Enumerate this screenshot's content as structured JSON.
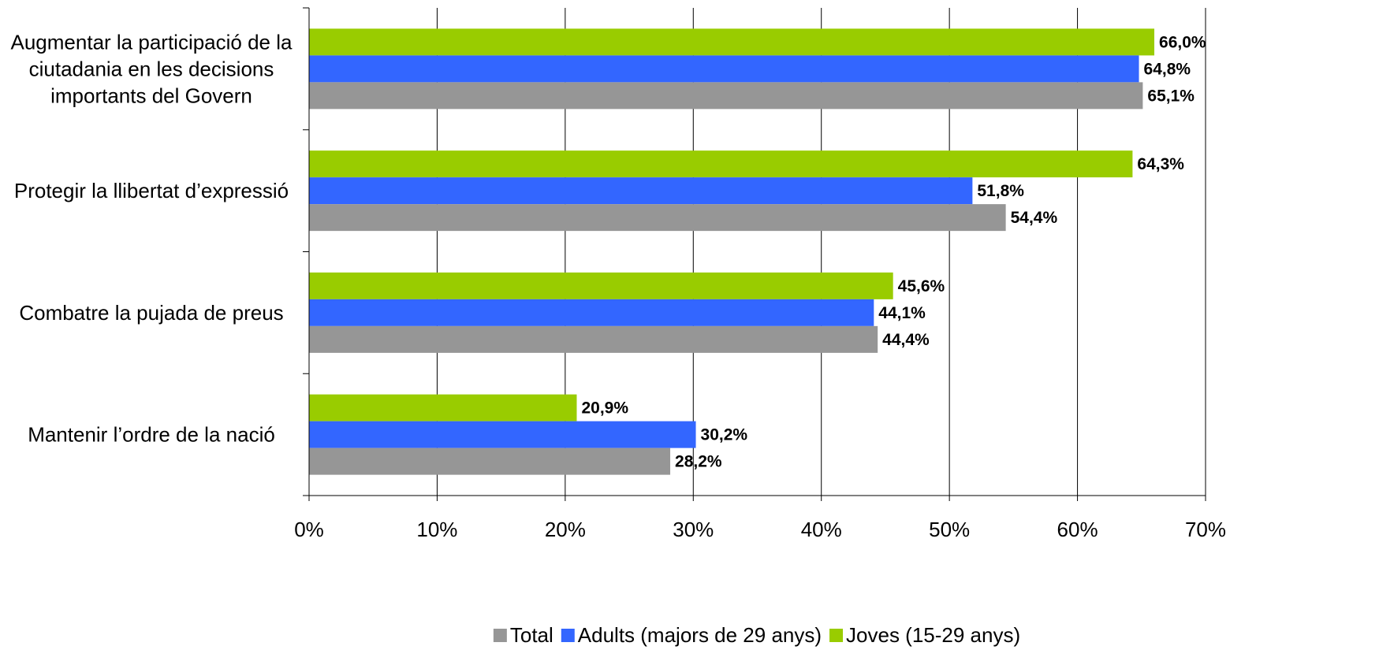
{
  "chart_data": {
    "type": "bar",
    "orientation": "horizontal",
    "categories": [
      [
        "Augmentar la participació de la",
        "ciutadania en les decisions",
        "importants del Govern"
      ],
      [
        "Protegir la llibertat d’expressió"
      ],
      [
        "Combatre la pujada de preus"
      ],
      [
        "Mantenir l’ordre de la nació"
      ]
    ],
    "series": [
      {
        "name": "Joves (15-29 anys)",
        "color": "#99cc00",
        "values": [
          66.0,
          64.3,
          45.6,
          20.9
        ],
        "labels": [
          "66,0%",
          "64,3%",
          "45,6%",
          "20,9%"
        ]
      },
      {
        "name": "Adults (majors de 29 anys)",
        "color": "#3366ff",
        "values": [
          64.8,
          51.8,
          44.1,
          30.2
        ],
        "labels": [
          "64,8%",
          "51,8%",
          "44,1%",
          "30,2%"
        ]
      },
      {
        "name": "Total",
        "color": "#969696",
        "values": [
          65.1,
          54.4,
          44.4,
          28.2
        ],
        "labels": [
          "65,1%",
          "54,4%",
          "44,4%",
          "28,2%"
        ]
      }
    ],
    "xlim": [
      0,
      70
    ],
    "xticks": [
      0,
      10,
      20,
      30,
      40,
      50,
      60,
      70
    ],
    "xtick_labels": [
      "0%",
      "10%",
      "20%",
      "30%",
      "40%",
      "50%",
      "60%",
      "70%"
    ],
    "grid": "vertical",
    "legend": {
      "position": "bottom",
      "order": [
        "Total",
        "Adults (majors de 29 anys)",
        "Joves (15-29 anys)"
      ]
    }
  }
}
